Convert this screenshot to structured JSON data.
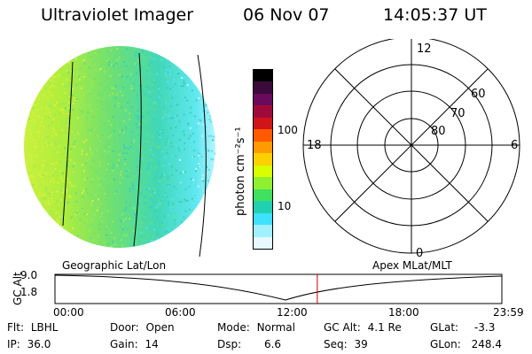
{
  "header": {
    "instrument": "Ultraviolet Imager",
    "date": "06 Nov 07",
    "time": "14:05:37 UT"
  },
  "colorbar": {
    "unit_label": "photon cm⁻²s⁻¹",
    "ticks": [
      "100",
      "10"
    ],
    "colors": [
      "#000000",
      "#3a0a3a",
      "#6a0a5a",
      "#a00a3a",
      "#d0151a",
      "#ff5a00",
      "#ff9a00",
      "#ffd000",
      "#d8ff00",
      "#90f030",
      "#40e060",
      "#20d0b0",
      "#40e0ff",
      "#a0f0ff",
      "#e8f8ff"
    ]
  },
  "polar": {
    "top_label": "12",
    "bottom_label": "0",
    "left_label": "18",
    "right_label": "6",
    "ring_labels": [
      "80",
      "70",
      "60"
    ]
  },
  "timeline": {
    "left_title": "Geographic Lat/Lon",
    "right_title": "Apex MLat/MLT",
    "axis_title": "GC Alt",
    "y_ticks": [
      "9.0",
      "1.8"
    ],
    "x_ticks": [
      "00:00",
      "06:00",
      "12:00",
      "18:00",
      "23:59"
    ],
    "marker_time_fraction": 0.587
  },
  "info": {
    "rows": [
      [
        {
          "label": "Flt:",
          "value": "LBHL"
        },
        {
          "label": "Door:",
          "value": "Open"
        },
        {
          "label": "Mode:",
          "value": "Normal"
        },
        {
          "label": "GC Alt:",
          "value": "4.1 Re"
        },
        {
          "label": "GLat:",
          "value": "-3.3"
        }
      ],
      [
        {
          "label": "IP:",
          "value": "36.0"
        },
        {
          "label": "Gain:",
          "value": "14"
        },
        {
          "label": "Dsp:",
          "value": "6.6"
        },
        {
          "label": "Seq:",
          "value": "39"
        },
        {
          "label": "GLon:",
          "value": "248.4"
        }
      ]
    ]
  }
}
